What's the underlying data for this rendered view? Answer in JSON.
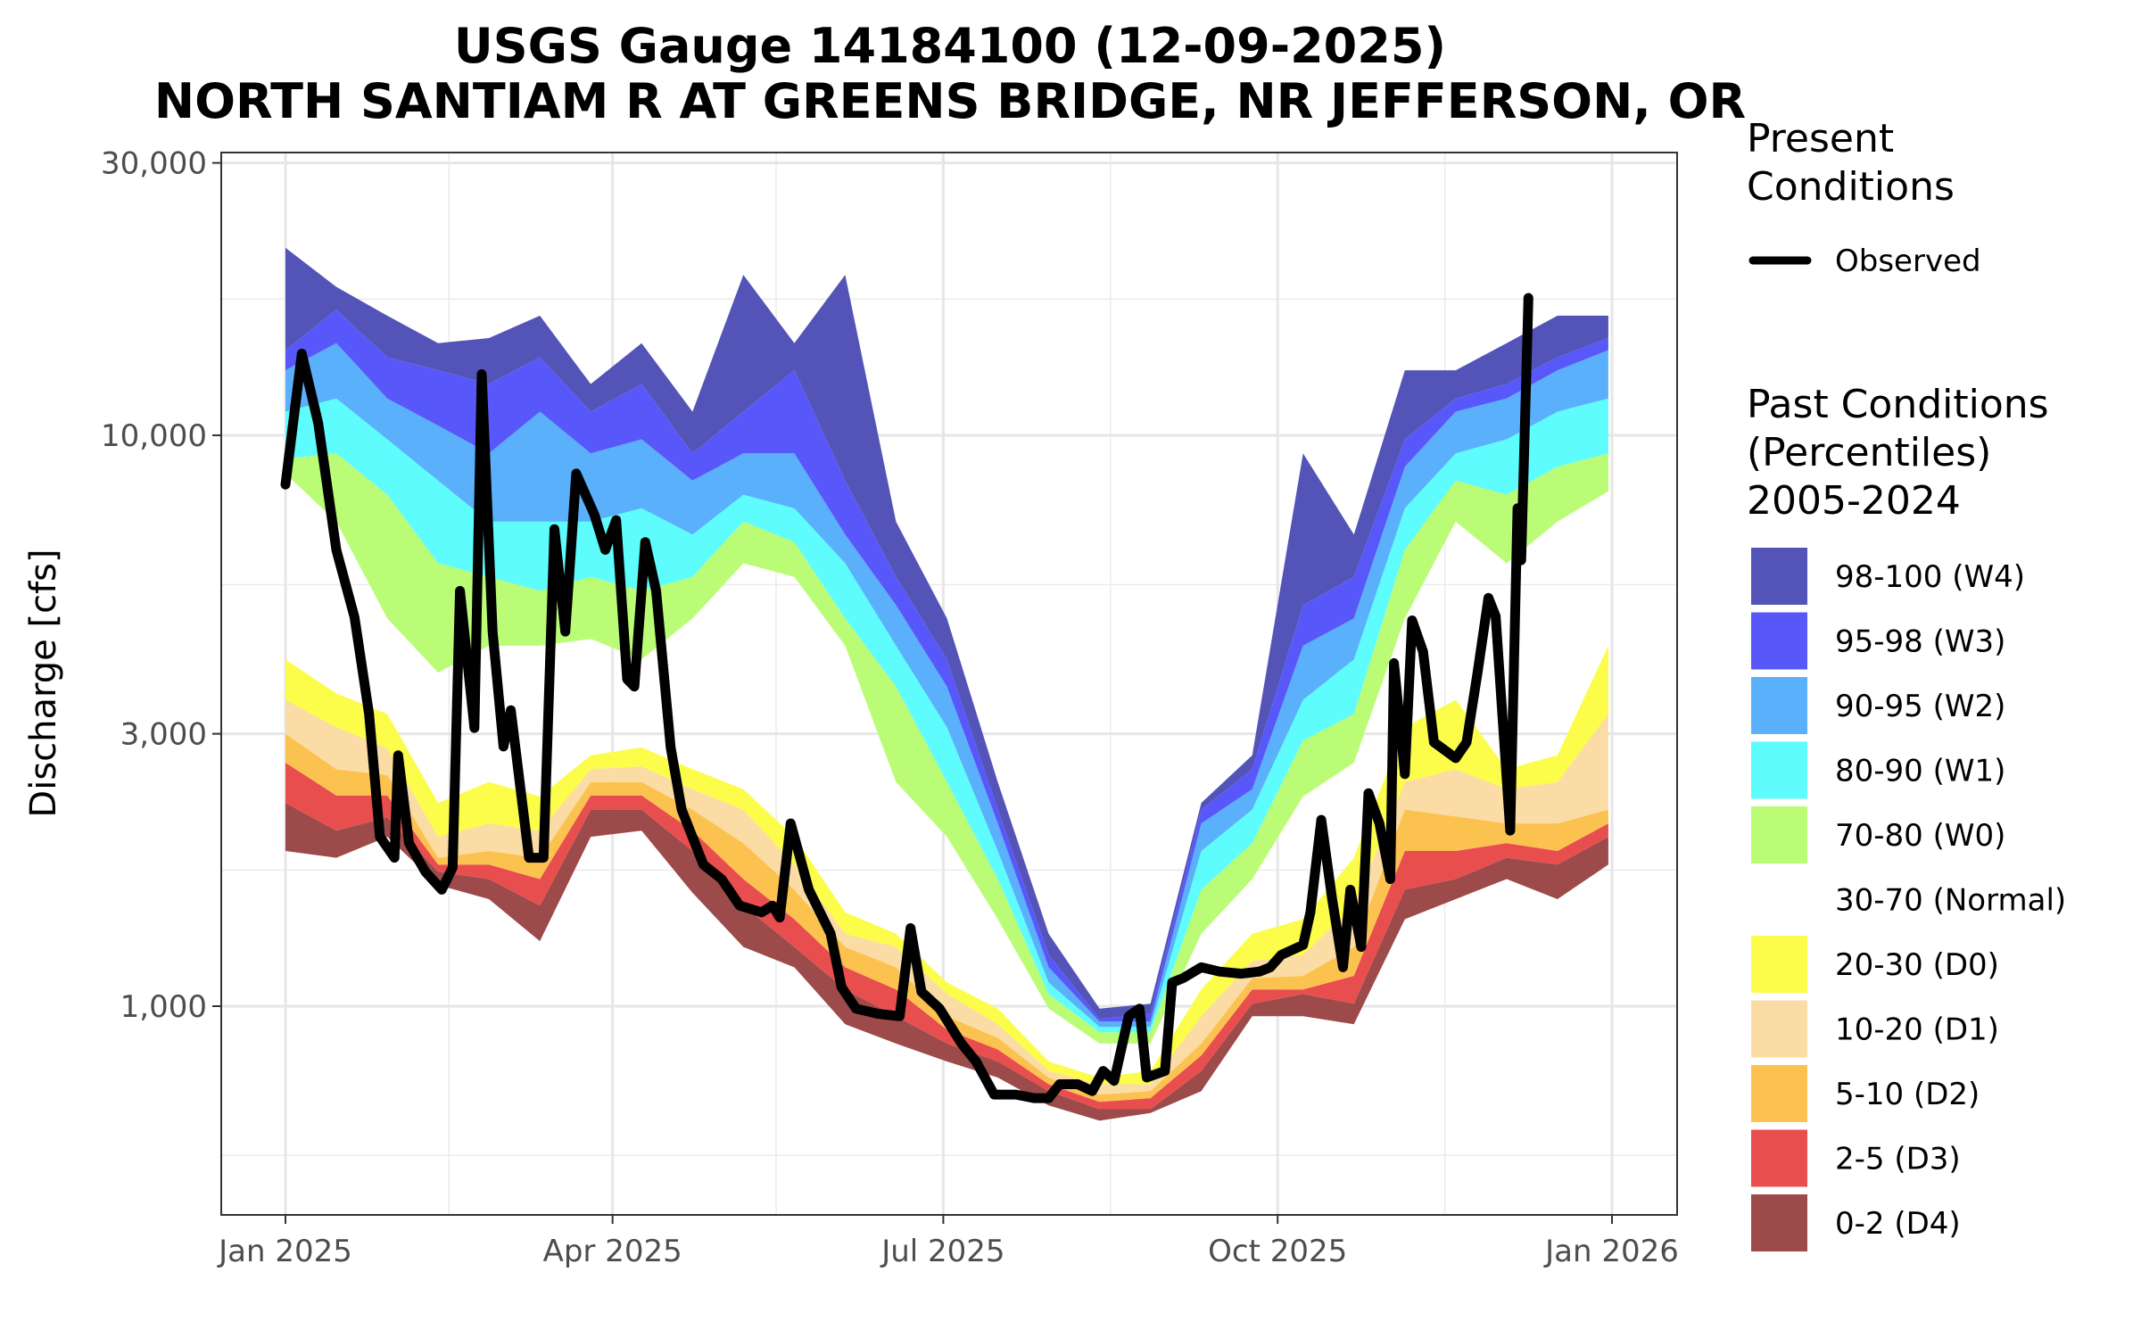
{
  "chart_data": {
    "type": "area",
    "title": "USGS Gauge 14184100 (12-09-2025)",
    "subtitle": "NORTH SANTIAM R AT GREENS BRIDGE, NR JEFFERSON, OR",
    "xlabel": "",
    "ylabel": "Discharge [cfs]",
    "y_scale": "log10",
    "ylim": [
      430,
      31000
    ],
    "xlim_days_from_2025_01_01": [
      -12,
      376
    ],
    "grid": true,
    "y_ticks": [
      {
        "value": 1000,
        "label": "1,000"
      },
      {
        "value": 3000,
        "label": "3,000"
      },
      {
        "value": 10000,
        "label": "10,000"
      },
      {
        "value": 30000,
        "label": "30,000"
      }
    ],
    "x_ticks": [
      {
        "day": 0,
        "label": "Jan 2025"
      },
      {
        "day": 90,
        "label": "Apr 2025"
      },
      {
        "day": 181,
        "label": "Jul 2025"
      },
      {
        "day": 273,
        "label": "Oct 2025"
      },
      {
        "day": 365,
        "label": "Jan 2026"
      }
    ],
    "legend": {
      "placement": "right",
      "present_title": "Present\nConditions",
      "present_title_lines": [
        "Present",
        "Conditions"
      ],
      "observed_label": "Observed",
      "past_title_lines": [
        "Past Conditions",
        "(Percentiles)",
        "2005-2024"
      ],
      "entries": [
        {
          "label": "98-100 (W4)",
          "color": "#5454B8"
        },
        {
          "label": "95-98 (W3)",
          "color": "#5858FA"
        },
        {
          "label": "90-95 (W2)",
          "color": "#5AB0FA"
        },
        {
          "label": "80-90 (W1)",
          "color": "#5EFCFC"
        },
        {
          "label": "70-80 (W0)",
          "color": "#BBFC76"
        },
        {
          "label": "30-70 (Normal)",
          "color": "#FFFFFF"
        },
        {
          "label": "20-30 (D0)",
          "color": "#FCFC4A"
        },
        {
          "label": "10-20 (D1)",
          "color": "#FADCA4"
        },
        {
          "label": "5-10 (D2)",
          "color": "#FCC250"
        },
        {
          "label": "2-5 (D3)",
          "color": "#E94E4E"
        },
        {
          "label": "0-2 (D4)",
          "color": "#9C4A4A"
        }
      ]
    },
    "percentile_bands": {
      "days": [
        0,
        14,
        28,
        42,
        56,
        70,
        84,
        98,
        112,
        126,
        140,
        154,
        168,
        182,
        196,
        210,
        224,
        238,
        252,
        266,
        280,
        294,
        308,
        322,
        336,
        350,
        364
      ],
      "p0": [
        1870,
        1820,
        1980,
        1630,
        1540,
        1300,
        1980,
        2030,
        1580,
        1270,
        1170,
        930,
        860,
        800,
        750,
        670,
        630,
        650,
        710,
        960,
        960,
        930,
        1420,
        1540,
        1670,
        1540,
        1770
      ],
      "p2": [
        2270,
        2030,
        2140,
        1720,
        1670,
        1500,
        2210,
        2210,
        1870,
        1500,
        1270,
        1070,
        960,
        860,
        800,
        710,
        660,
        660,
        770,
        1010,
        1050,
        1010,
        1600,
        1670,
        1820,
        1770,
        1980
      ],
      "p5": [
        2670,
        2340,
        2340,
        1770,
        1770,
        1670,
        2340,
        2340,
        2030,
        1670,
        1420,
        1170,
        1070,
        910,
        840,
        730,
        680,
        690,
        820,
        1070,
        1070,
        1130,
        1870,
        1870,
        1930,
        1870,
        2090
      ],
      "p10": [
        3000,
        2600,
        2540,
        1820,
        1870,
        1820,
        2470,
        2470,
        2210,
        1930,
        1600,
        1270,
        1170,
        960,
        880,
        750,
        700,
        710,
        860,
        1120,
        1130,
        1270,
        2210,
        2150,
        2090,
        2090,
        2210
      ],
      "p20": [
        3440,
        3080,
        2830,
        1980,
        2090,
        2030,
        2600,
        2630,
        2400,
        2210,
        1770,
        1340,
        1270,
        1050,
        930,
        770,
        730,
        730,
        960,
        1200,
        1230,
        1500,
        2470,
        2600,
        2400,
        2470,
        3250
      ],
      "p30": [
        4050,
        3530,
        3250,
        2270,
        2470,
        2330,
        2750,
        2840,
        2600,
        2400,
        1980,
        1460,
        1340,
        1100,
        990,
        800,
        750,
        770,
        1070,
        1340,
        1420,
        1820,
        3080,
        3440,
        2600,
        2750,
        4280
      ],
      "p70": [
        8570,
        7060,
        4780,
        3840,
        4280,
        4280,
        4400,
        4050,
        4780,
        5970,
        5650,
        4280,
        2470,
        1980,
        1420,
        990,
        860,
        860,
        1340,
        1670,
        2330,
        2670,
        4780,
        7060,
        5970,
        7060,
        7980
      ],
      "p80": [
        9100,
        9300,
        7870,
        5970,
        5650,
        5340,
        5650,
        5340,
        5650,
        7060,
        6500,
        4780,
        3630,
        2470,
        1670,
        1050,
        900,
        900,
        1600,
        1930,
        2920,
        3250,
        6300,
        8330,
        7870,
        8810,
        9300
      ],
      "p90": [
        11000,
        11600,
        9840,
        8330,
        7060,
        7060,
        7060,
        7450,
        6700,
        7870,
        7450,
        5970,
        4280,
        3080,
        1870,
        1100,
        920,
        920,
        1870,
        2210,
        3440,
        4050,
        7450,
        9300,
        9840,
        11000,
        11600
      ],
      "p95": [
        13000,
        14500,
        11600,
        10400,
        9300,
        11000,
        9300,
        9840,
        8330,
        9300,
        9300,
        6700,
        5040,
        3630,
        2090,
        1170,
        940,
        940,
        2090,
        2400,
        4280,
        4780,
        8810,
        11000,
        11600,
        13000,
        14100
      ],
      "p98": [
        14100,
        16600,
        13700,
        13000,
        12300,
        13700,
        11000,
        12300,
        9300,
        11000,
        13000,
        8330,
        5650,
        4050,
        2210,
        1230,
        950,
        970,
        2210,
        2600,
        5040,
        5650,
        9840,
        11600,
        12300,
        13700,
        14800
      ],
      "p100": [
        21300,
        18200,
        16200,
        14500,
        14800,
        16200,
        12300,
        14500,
        11000,
        19100,
        14500,
        19100,
        7060,
        4780,
        2470,
        1340,
        990,
        1010,
        2270,
        2750,
        9300,
        6700,
        13000,
        13000,
        14500,
        16200,
        16200
      ]
    },
    "observed": {
      "days": [
        0,
        4.5,
        9,
        14,
        19,
        23,
        26,
        30,
        31,
        34,
        38.5,
        43,
        46,
        48,
        52,
        54,
        57,
        60,
        62,
        67,
        71,
        74,
        77,
        80,
        85,
        88,
        91,
        94,
        96,
        99,
        102,
        106,
        109,
        115,
        120,
        125,
        131,
        134,
        136,
        139,
        144,
        150,
        153,
        157,
        163,
        169,
        172,
        175,
        180,
        186,
        190,
        195,
        201,
        206,
        210,
        213,
        218,
        222,
        225,
        228,
        232,
        235,
        237,
        242,
        244,
        247,
        252,
        257,
        263,
        268,
        271,
        274,
        280,
        282,
        285,
        288,
        291,
        293,
        296,
        298,
        301,
        304,
        305,
        308,
        310,
        313,
        316,
        322,
        325,
        328,
        331,
        333,
        337,
        339,
        340,
        342
      ],
      "values": [
        8200,
        13900,
        10500,
        6300,
        4800,
        3250,
        1980,
        1820,
        2750,
        1930,
        1720,
        1600,
        1750,
        5340,
        3070,
        12800,
        4530,
        2850,
        3300,
        1820,
        1820,
        6850,
        4530,
        8570,
        7260,
        6300,
        7100,
        3740,
        3630,
        6500,
        5340,
        2840,
        2210,
        1770,
        1670,
        1500,
        1460,
        1500,
        1430,
        2090,
        1600,
        1340,
        1080,
        990,
        970,
        960,
        1370,
        1060,
        990,
        860,
        800,
        700,
        700,
        690,
        690,
        730,
        730,
        710,
        770,
        740,
        960,
        990,
        750,
        770,
        1100,
        1120,
        1170,
        1150,
        1140,
        1150,
        1170,
        1230,
        1280,
        1460,
        2120,
        1540,
        1170,
        1600,
        1270,
        2360,
        2090,
        1670,
        3990,
        2550,
        4740,
        4180,
        2900,
        2720,
        2900,
        3840,
        5190,
        4820,
        2030,
        7450,
        6040,
        17400
      ]
    }
  }
}
